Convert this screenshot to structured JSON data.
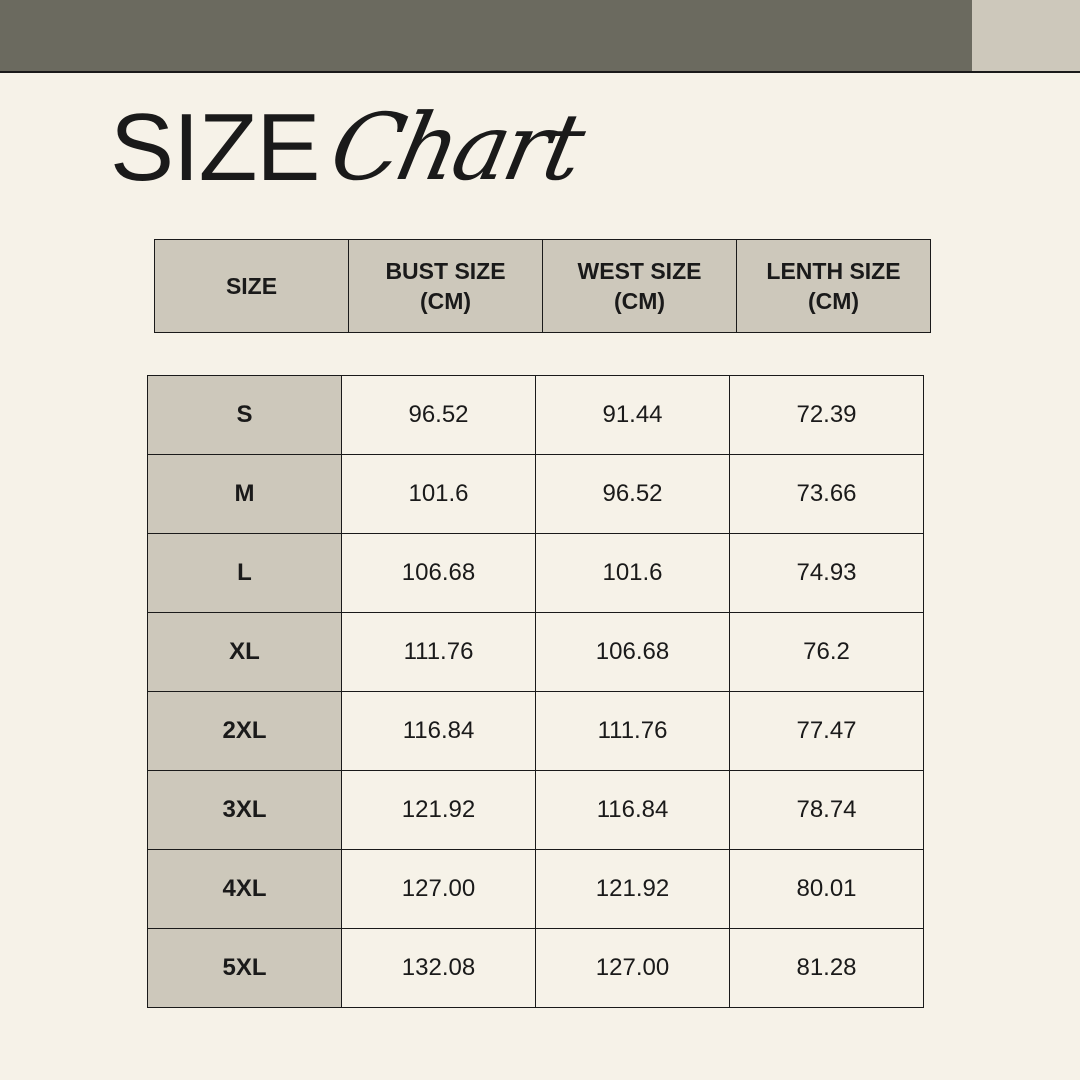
{
  "colors": {
    "topbar": "#6b6a5f",
    "accent_light": "#cdc8bb",
    "background": "#f6f2e8"
  },
  "title": {
    "main": "SIZE",
    "script": "Chart"
  },
  "headers": [
    "SIZE",
    "BUST SIZE\n(CM)",
    "WEST SIZE\n(CM)",
    "LENTH SIZE\n(CM)"
  ],
  "rows": [
    [
      "S",
      "96.52",
      "91.44",
      "72.39"
    ],
    [
      "M",
      "101.6",
      "96.52",
      "73.66"
    ],
    [
      "L",
      "106.68",
      "101.6",
      "74.93"
    ],
    [
      "XL",
      "111.76",
      "106.68",
      "76.2"
    ],
    [
      "2XL",
      "116.84",
      "111.76",
      "77.47"
    ],
    [
      "3XL",
      "121.92",
      "116.84",
      "78.74"
    ],
    [
      "4XL",
      "127.00",
      "121.92",
      "80.01"
    ],
    [
      "5XL",
      "132.08",
      "127.00",
      "81.28"
    ]
  ]
}
